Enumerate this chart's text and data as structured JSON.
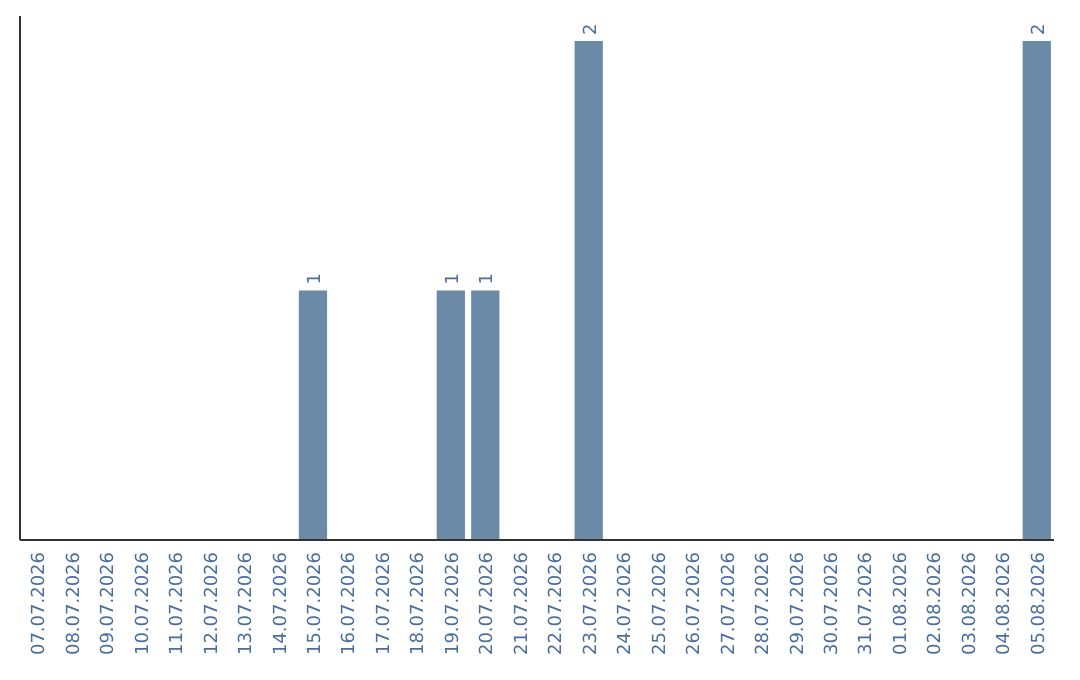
{
  "chart_data": {
    "type": "bar",
    "categories": [
      "07.07.2026",
      "08.07.2026",
      "09.07.2026",
      "10.07.2026",
      "11.07.2026",
      "12.07.2026",
      "13.07.2026",
      "14.07.2026",
      "15.07.2026",
      "16.07.2026",
      "17.07.2026",
      "18.07.2026",
      "19.07.2026",
      "20.07.2026",
      "21.07.2026",
      "22.07.2026",
      "23.07.2026",
      "24.07.2026",
      "25.07.2026",
      "26.07.2026",
      "27.07.2026",
      "28.07.2026",
      "29.07.2026",
      "30.07.2026",
      "31.07.2026",
      "01.08.2026",
      "02.08.2026",
      "03.08.2026",
      "04.08.2026",
      "05.08.2026"
    ],
    "values": [
      0,
      0,
      0,
      0,
      0,
      0,
      0,
      0,
      1,
      0,
      0,
      0,
      1,
      1,
      0,
      0,
      2,
      0,
      0,
      0,
      0,
      0,
      0,
      0,
      0,
      0,
      0,
      0,
      0,
      2
    ],
    "value_labels": [
      null,
      null,
      null,
      null,
      null,
      null,
      null,
      null,
      "1",
      null,
      null,
      null,
      "1",
      "1",
      null,
      null,
      "2",
      null,
      null,
      null,
      null,
      null,
      null,
      null,
      null,
      null,
      null,
      null,
      null,
      "2"
    ],
    "color": "#6b8aa8",
    "ylim": [
      0,
      2.1
    ],
    "tick_labels": "x"
  }
}
